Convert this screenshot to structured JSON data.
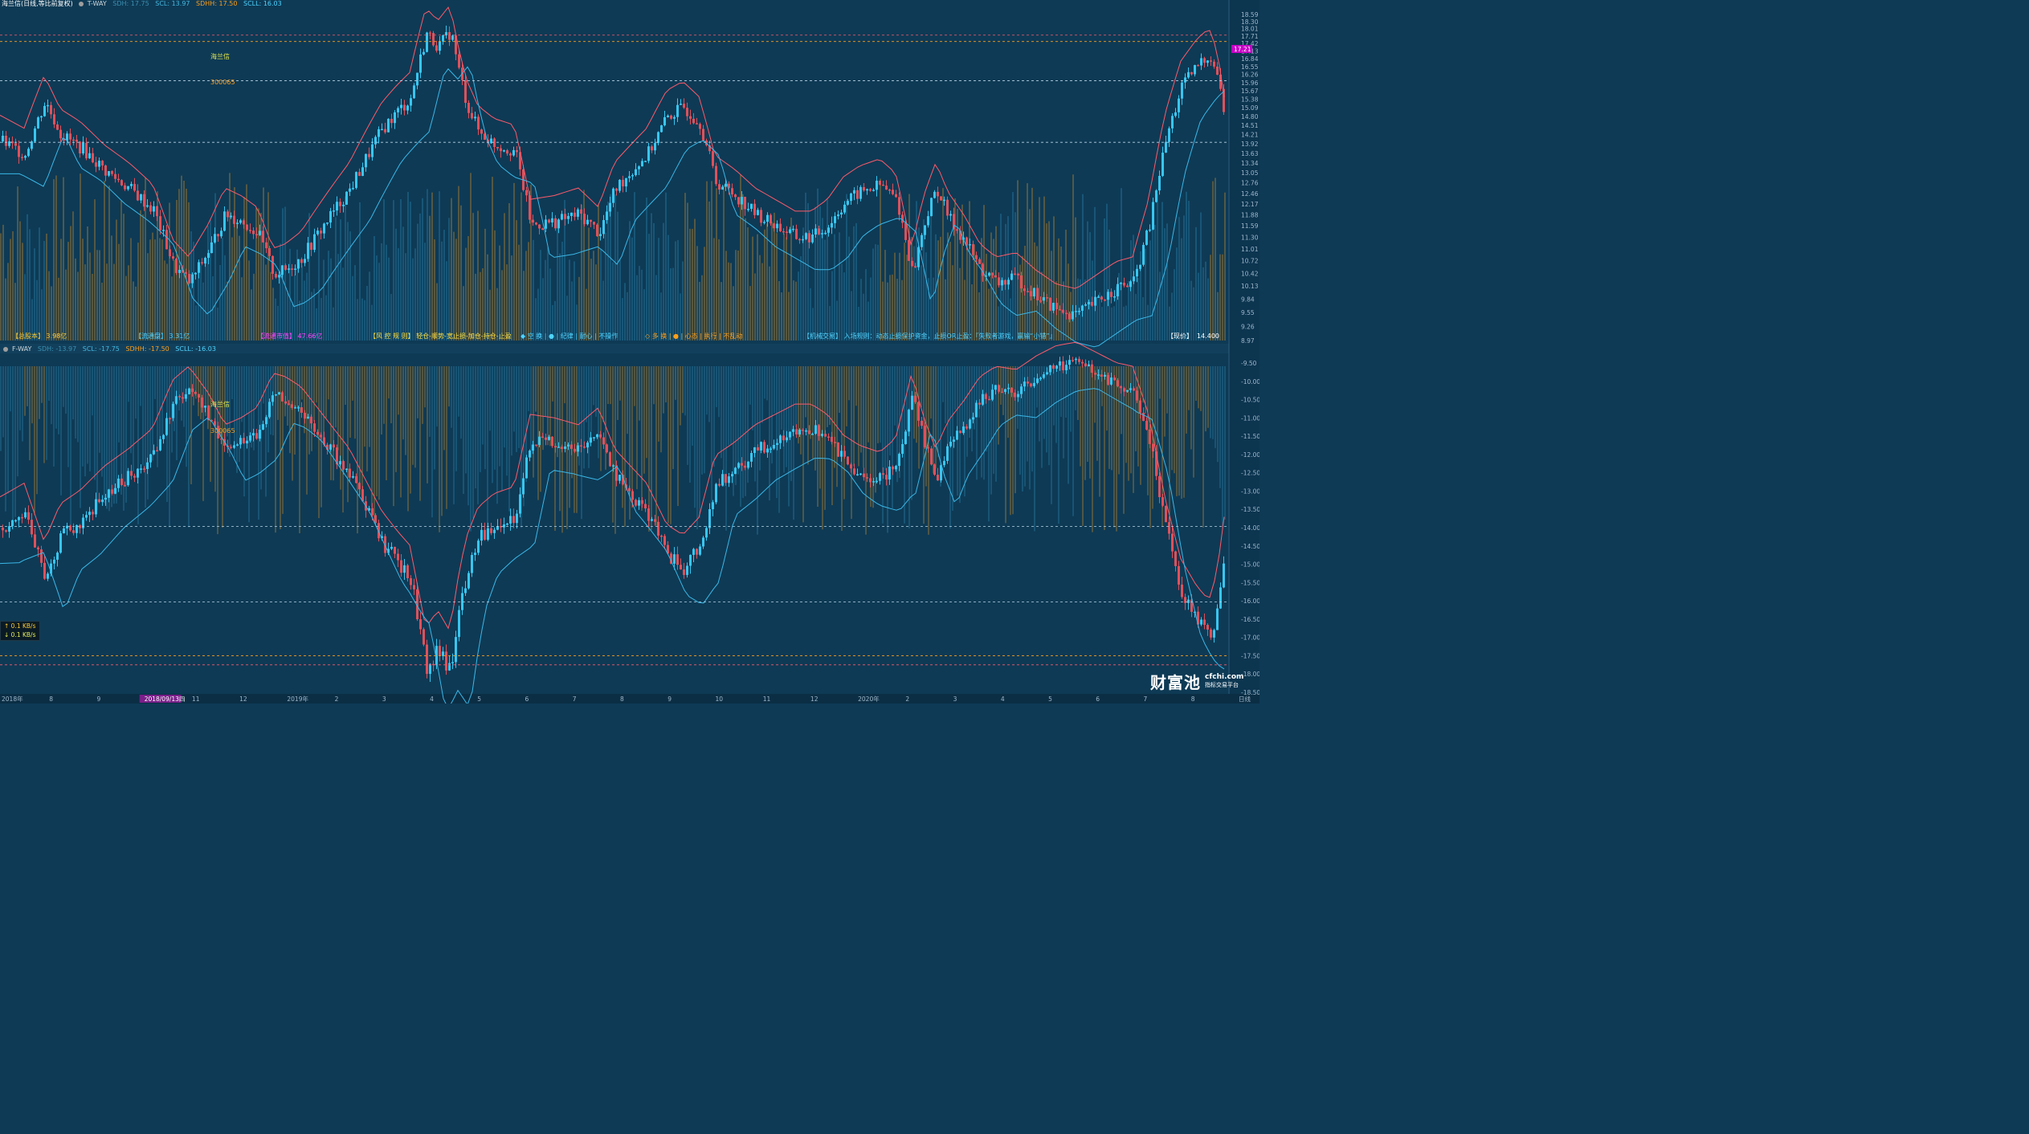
{
  "top_header": {
    "stock": "海兰信(日线,等比前复权)",
    "mode": "T-WAY",
    "sdh": "SDH: 17.75",
    "scl": "SCL: 13.97",
    "sdhh": "SDHH: 17.50",
    "scll": "SCLL: 16.03"
  },
  "bottom_header": {
    "mode": "F-WAY",
    "sdh": "SDH: -13.97",
    "scl": "SCL: -17.75",
    "sdhh": "SDHH: -17.50",
    "scll": "SCLL: -16.03"
  },
  "annotations": {
    "top_name": "海兰信",
    "top_code": "300065",
    "bottom_name": "海兰信",
    "bottom_code": "300065"
  },
  "stats_bar": {
    "total_shares": "【总股本】 3.98亿",
    "float_shares": "【流通盘】 3.31亿",
    "float_mktcap": "【流通市值】 47.66亿",
    "risk_rules": "【风 控 规 则】 轻仓-顺势-宽止损-加仓-持仓-止盈",
    "empty_mode": "◆ 空 换 | ● | 纪律 | 耐心 | 不操作",
    "long_mode": "◇ 多 换 | ● | 心态 | 执行 | 不乱动",
    "mech_trade": "【机械交易】 入场规则：动态止损保护资金，止损OR止盈：『失败者游戏，赢输“小错”』",
    "price_label": "【现价】",
    "price_value": "14.400"
  },
  "network": {
    "up": "↑ 0.1 KB/s",
    "down": "↓ 0.1 KB/s"
  },
  "logo": {
    "name": "财富池",
    "domain": "cfchi.com",
    "slogan": "指标交易平台"
  },
  "date_axis": {
    "labels": [
      "2018年",
      "8",
      "9",
      "2018/09/13四",
      "11",
      "12",
      "2019年",
      "2",
      "3",
      "4",
      "5",
      "6",
      "7",
      "8",
      "9",
      "10",
      "11",
      "12",
      "2020年",
      "2",
      "3",
      "4",
      "5",
      "6",
      "7",
      "8",
      "日线"
    ]
  },
  "top_axis": {
    "ticks": [
      "18.59",
      "18.30",
      "18.01",
      "17.71",
      "17.42",
      "17.13",
      "16.84",
      "16.55",
      "16.26",
      "15.96",
      "15.67",
      "15.38",
      "15.09",
      "14.80",
      "14.51",
      "14.21",
      "13.92",
      "13.63",
      "13.34",
      "13.05",
      "12.76",
      "12.46",
      "12.17",
      "11.88",
      "11.59",
      "11.30",
      "11.01",
      "10.72",
      "10.42",
      "10.13",
      "9.84",
      "9.55",
      "9.26",
      "8.97"
    ],
    "current_price": "17.21"
  },
  "bottom_axis": {
    "ticks": [
      "-9.50",
      "-10.00",
      "-10.50",
      "-11.00",
      "-11.50",
      "-12.00",
      "-12.50",
      "-13.00",
      "-13.50",
      "-14.00",
      "-14.50",
      "-15.00",
      "-15.50",
      "-16.00",
      "-16.50",
      "-17.00",
      "-17.50",
      "-18.00",
      "-18.50"
    ]
  },
  "colors": {
    "background": "#0e3a55",
    "bull": "#38c6f0",
    "bear": "#e0505a",
    "vol_orange": "#c88a2a",
    "vol_cyan": "#2a86b0",
    "stop_red": "#ff5a6a",
    "stop_cyan": "#3ab8e8",
    "dashed_orange": "#ff9f1a",
    "accent_purple": "#c800c8"
  },
  "chart_data": [
    {
      "type": "candlestick",
      "title": "海兰信(日线,等比前复权) T-WAY",
      "x_range": [
        "2018-07",
        "2020-08"
      ],
      "ylim": [
        8.97,
        18.59
      ],
      "y_scale": "log",
      "grid": false,
      "key_levels": {
        "SDH": 17.75,
        "SCL": 13.97,
        "SDHH": 17.5,
        "SCLL": 16.03
      },
      "approx_close_path": [
        [
          0,
          14.0
        ],
        [
          30,
          13.6
        ],
        [
          55,
          15.3
        ],
        [
          75,
          14.2
        ],
        [
          100,
          13.8
        ],
        [
          130,
          13.1
        ],
        [
          160,
          12.6
        ],
        [
          190,
          12.0
        ],
        [
          215,
          10.6
        ],
        [
          235,
          10.2
        ],
        [
          260,
          11.0
        ],
        [
          280,
          11.9
        ],
        [
          300,
          11.7
        ],
        [
          320,
          11.4
        ],
        [
          340,
          10.4
        ],
        [
          355,
          10.5
        ],
        [
          375,
          10.8
        ],
        [
          395,
          11.4
        ],
        [
          415,
          12.0
        ],
        [
          435,
          12.6
        ],
        [
          455,
          13.5
        ],
        [
          475,
          14.4
        ],
        [
          495,
          15.0
        ],
        [
          510,
          15.4
        ],
        [
          520,
          16.6
        ],
        [
          530,
          17.8
        ],
        [
          545,
          17.3
        ],
        [
          560,
          17.9
        ],
        [
          570,
          16.4
        ],
        [
          580,
          15.2
        ],
        [
          595,
          14.3
        ],
        [
          615,
          13.9
        ],
        [
          640,
          13.7
        ],
        [
          660,
          11.6
        ],
        [
          690,
          11.7
        ],
        [
          720,
          11.9
        ],
        [
          745,
          11.4
        ],
        [
          765,
          12.6
        ],
        [
          785,
          13.1
        ],
        [
          805,
          13.6
        ],
        [
          830,
          14.8
        ],
        [
          850,
          15.1
        ],
        [
          870,
          14.6
        ],
        [
          890,
          12.8
        ],
        [
          915,
          12.4
        ],
        [
          940,
          11.9
        ],
        [
          965,
          11.6
        ],
        [
          990,
          11.3
        ],
        [
          1010,
          11.3
        ],
        [
          1030,
          11.6
        ],
        [
          1050,
          12.2
        ],
        [
          1070,
          12.5
        ],
        [
          1095,
          12.7
        ],
        [
          1115,
          12.3
        ],
        [
          1135,
          10.4
        ],
        [
          1150,
          11.7
        ],
        [
          1165,
          12.6
        ],
        [
          1180,
          11.8
        ],
        [
          1200,
          11.2
        ],
        [
          1220,
          10.5
        ],
        [
          1240,
          10.2
        ],
        [
          1265,
          10.3
        ],
        [
          1290,
          9.9
        ],
        [
          1315,
          9.6
        ],
        [
          1340,
          9.5
        ],
        [
          1365,
          9.8
        ],
        [
          1390,
          10.1
        ],
        [
          1410,
          10.2
        ],
        [
          1430,
          11.6
        ],
        [
          1450,
          14.0
        ],
        [
          1470,
          15.8
        ],
        [
          1490,
          16.6
        ],
        [
          1505,
          17.0
        ],
        [
          1515,
          16.2
        ],
        [
          1525,
          14.4
        ]
      ]
    },
    {
      "type": "candlestick",
      "title": "F-WAY (inverted)",
      "x_range": [
        "2018-07",
        "2020-08"
      ],
      "ylim": [
        -18.5,
        -9.5
      ],
      "grid": false,
      "key_levels": {
        "SDH": -13.97,
        "SCL": -17.75,
        "SDHH": -17.5,
        "SCLL": -16.03
      }
    }
  ]
}
